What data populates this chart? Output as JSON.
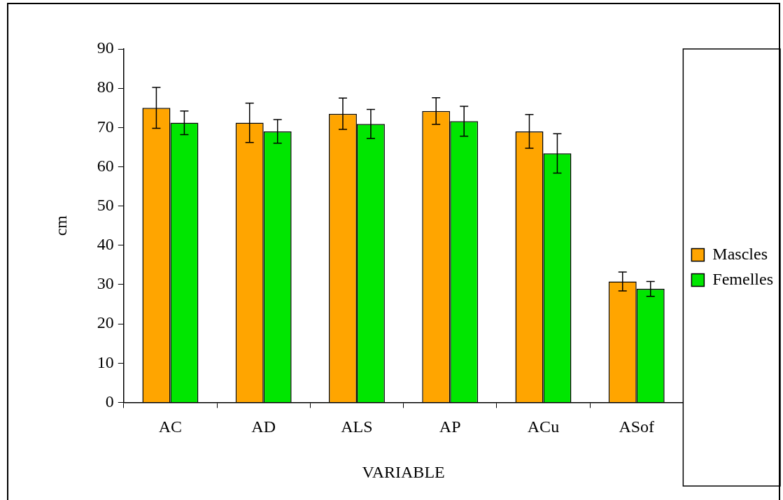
{
  "chart_data": {
    "type": "bar",
    "xlabel": "VARIABLE",
    "ylabel": "cm",
    "categories": [
      "AC",
      "AD",
      "ALS",
      "AP",
      "ACu",
      "ASof"
    ],
    "series": [
      {
        "name": "Mascles",
        "color": "#ffa500",
        "values": [
          75.0,
          71.2,
          73.5,
          74.2,
          69.0,
          30.8
        ],
        "errors": [
          5.2,
          5.0,
          4.0,
          3.4,
          4.3,
          2.4
        ]
      },
      {
        "name": "Femelles",
        "color": "#00e600",
        "values": [
          71.2,
          69.0,
          70.9,
          71.6,
          63.4,
          28.9
        ],
        "errors": [
          3.0,
          3.0,
          3.7,
          3.8,
          5.0,
          1.9
        ]
      }
    ],
    "ylim": [
      0,
      90
    ],
    "yticks": [
      0,
      10,
      20,
      30,
      40,
      50,
      60,
      70,
      80,
      90
    ],
    "grid": false,
    "legend": "right"
  }
}
